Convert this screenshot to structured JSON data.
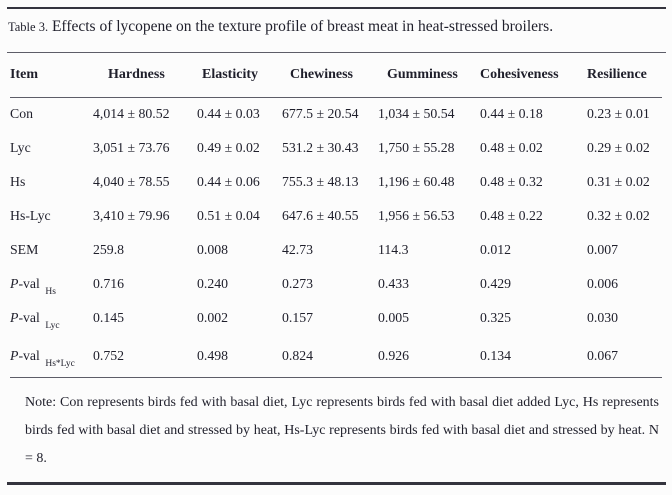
{
  "title": {
    "label": "Table 3.",
    "caption": " Effects of lycopene on the texture profile of breast meat in heat-stressed broilers."
  },
  "table": {
    "columns": [
      "Item",
      "Hardness",
      "Elasticity",
      "Chewiness",
      "Gumminess",
      "Cohesiveness",
      "Resilience"
    ],
    "rows": [
      {
        "item_p": "",
        "item_main": "Con",
        "item_sub": "",
        "values": [
          "4,014 ± 80.52",
          "0.44 ± 0.03",
          "677.5 ± 20.54",
          "1,034 ± 50.54",
          "0.44 ± 0.18",
          "0.23 ± 0.01"
        ]
      },
      {
        "item_p": "",
        "item_main": "Lyc",
        "item_sub": "",
        "values": [
          "3,051 ± 73.76",
          "0.49 ± 0.02",
          "531.2 ± 30.43",
          "1,750 ± 55.28",
          "0.48 ± 0.02",
          "0.29 ± 0.02"
        ]
      },
      {
        "item_p": "",
        "item_main": "Hs",
        "item_sub": "",
        "values": [
          "4,040 ± 78.55",
          "0.44 ± 0.06",
          "755.3 ± 48.13",
          "1,196 ± 60.48",
          "0.48 ± 0.32",
          "0.31 ± 0.02"
        ]
      },
      {
        "item_p": "",
        "item_main": "Hs-Lyc",
        "item_sub": "",
        "values": [
          "3,410 ± 79.96",
          "0.51 ± 0.04",
          "647.6 ± 40.55",
          "1,956 ± 56.53",
          "0.48 ± 0.22",
          "0.32 ± 0.02"
        ]
      },
      {
        "item_p": "",
        "item_main": "SEM",
        "item_sub": "",
        "values": [
          "259.8",
          "0.008",
          "42.73",
          "114.3",
          "0.012",
          "0.007"
        ]
      },
      {
        "item_p": "P",
        "item_main": "-val ",
        "item_sub": "Hs",
        "values": [
          "0.716",
          "0.240",
          "0.273",
          "0.433",
          "0.429",
          "0.006"
        ]
      },
      {
        "item_p": "P",
        "item_main": "-val ",
        "item_sub": "Lyc",
        "values": [
          "0.145",
          "0.002",
          "0.157",
          "0.005",
          "0.325",
          "0.030"
        ]
      },
      {
        "item_p": "P",
        "item_main": "-val ",
        "item_sub": "Hs*Lyc",
        "values": [
          "0.752",
          "0.498",
          "0.824",
          "0.926",
          "0.134",
          "0.067"
        ]
      }
    ]
  },
  "note": "Note: Con represents birds fed with basal diet, Lyc represents birds fed with basal diet added Lyc, Hs represents birds fed with basal diet and stressed by heat, Hs-Lyc represents birds fed with basal diet and stressed by heat. N = 8."
}
